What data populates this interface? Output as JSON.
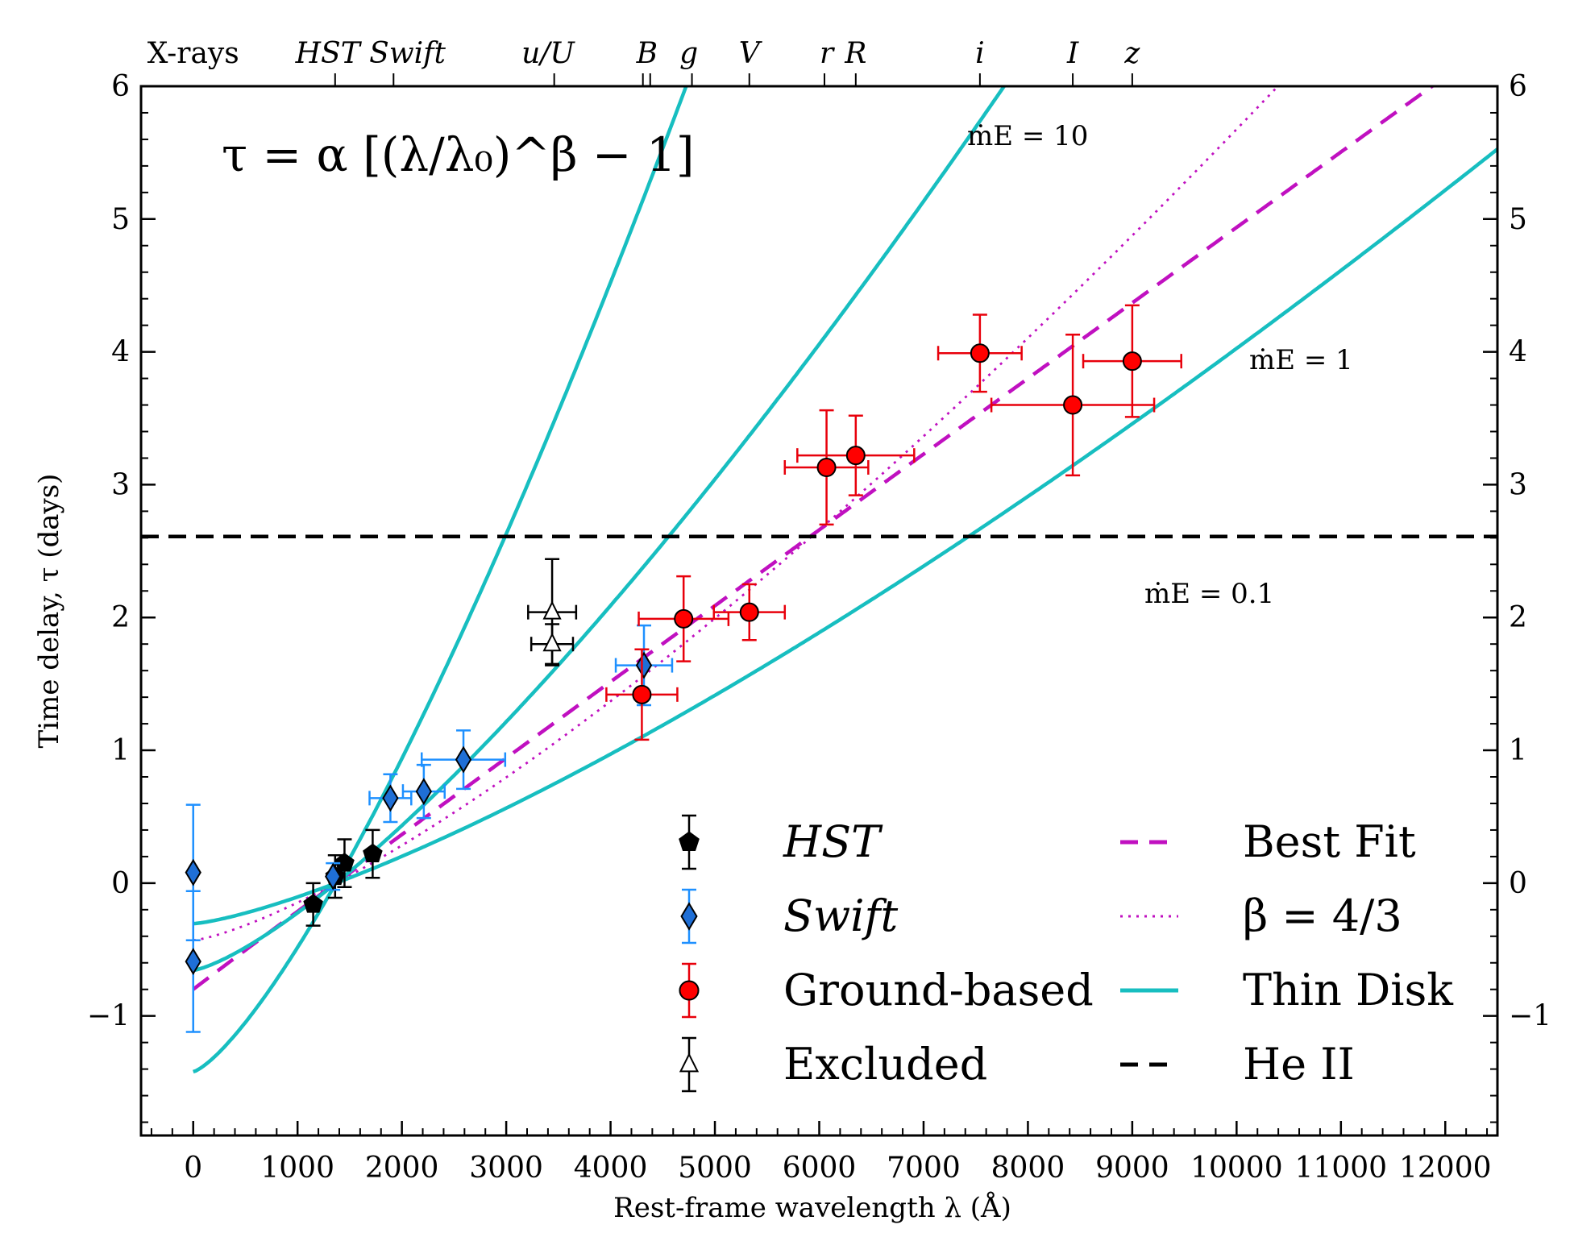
{
  "chart_data": {
    "type": "scatter",
    "formula": "τ = α [(λ/λ₀)^β − 1]",
    "xlabel": "Rest-frame wavelength λ (Å)",
    "ylabel": "Time delay, τ (days)",
    "xlim": [
      -500,
      12500
    ],
    "ylim": [
      -1.9,
      6
    ],
    "x_ticks": [
      0,
      1000,
      2000,
      3000,
      4000,
      5000,
      6000,
      7000,
      8000,
      9000,
      10000,
      11000,
      12000
    ],
    "y_ticks": [
      -1,
      0,
      1,
      2,
      3,
      4,
      5,
      6
    ],
    "y_tick_labels": [
      "−1",
      "0",
      "1",
      "2",
      "3",
      "4",
      "5",
      "6"
    ],
    "top_bands": [
      {
        "label": "X-rays",
        "x": 0,
        "italic": false
      },
      {
        "label": "HST Swift",
        "x": 1700,
        "italic": true
      },
      {
        "label": "u/U",
        "x": 3400,
        "italic": true
      },
      {
        "label": "B",
        "x": 4350,
        "italic": true
      },
      {
        "label": "g",
        "x": 4750,
        "italic": true
      },
      {
        "label": "V",
        "x": 5330,
        "italic": true
      },
      {
        "label": "r",
        "x": 6070,
        "italic": true
      },
      {
        "label": "R",
        "x": 6350,
        "italic": true
      },
      {
        "label": "i",
        "x": 7540,
        "italic": true
      },
      {
        "label": "I",
        "x": 8430,
        "italic": true
      },
      {
        "label": "z",
        "x": 9000,
        "italic": true
      }
    ],
    "top_ticks": [
      1360,
      1920,
      3460,
      4310,
      4380,
      4780,
      5330,
      6050,
      6350,
      7540,
      8430,
      9000
    ],
    "series": [
      {
        "name": "HST",
        "marker": "pentagon",
        "color": "#000000",
        "errcolor": "#000000",
        "points": [
          {
            "x": 1150,
            "y": -0.16,
            "yerr": 0.16
          },
          {
            "x": 1360,
            "y": 0.05,
            "yerr": 0.16,
            "xerr": 0.0
          },
          {
            "x": 1450,
            "y": 0.15,
            "yerr": 0.18
          },
          {
            "x": 1720,
            "y": 0.22,
            "yerr": 0.18
          }
        ]
      },
      {
        "name": "Swift",
        "marker": "diamond",
        "color": "#1f6fd6",
        "errcolor": "#1e90ff",
        "points": [
          {
            "x": 0,
            "y": 0.08,
            "yerr": 0.51
          },
          {
            "x": 0,
            "y": -0.59,
            "yerr": 0.53
          },
          {
            "x": 1340,
            "y": 0.05,
            "yerr": 0.1,
            "xerr": 0
          },
          {
            "x": 1890,
            "y": 0.64,
            "yerr": 0.18,
            "xerr": 200
          },
          {
            "x": 2210,
            "y": 0.69,
            "yerr": 0.2,
            "xerr": 200
          },
          {
            "x": 2590,
            "y": 0.93,
            "yerr": 0.22,
            "xerr": 400
          },
          {
            "x": 4320,
            "y": 1.64,
            "yerr": 0.3,
            "xerr": 270
          }
        ]
      },
      {
        "name": "Ground-based",
        "marker": "circle",
        "color": "#ff0000",
        "errcolor": "#e8000b",
        "points": [
          {
            "x": 4300,
            "y": 1.42,
            "yerr": 0.34,
            "xerr": 340
          },
          {
            "x": 4700,
            "y": 1.99,
            "yerr": 0.32,
            "xerr": 430
          },
          {
            "x": 5330,
            "y": 2.04,
            "yerr": 0.21,
            "xerr": 340
          },
          {
            "x": 6070,
            "y": 3.13,
            "yerr": 0.43,
            "xerr": 400
          },
          {
            "x": 6350,
            "y": 3.22,
            "yerr": 0.3,
            "xerr": 560
          },
          {
            "x": 7540,
            "y": 3.99,
            "yerr": 0.29,
            "xerr": 400
          },
          {
            "x": 8430,
            "y": 3.6,
            "yerr": 0.53,
            "xerr": 780
          },
          {
            "x": 9000,
            "y": 3.93,
            "yerr": 0.42,
            "xerr": 470
          }
        ]
      },
      {
        "name": "Excluded",
        "marker": "triangle",
        "color": "#ffffff",
        "errcolor": "#000000",
        "points": [
          {
            "x": 3440,
            "y": 2.04,
            "yerr": 0.4,
            "xerr": 230
          },
          {
            "x": 3440,
            "y": 1.8,
            "yerr": 0.15,
            "xerr": 200
          }
        ]
      }
    ],
    "models": [
      {
        "name": "Best Fit",
        "style": "dashed",
        "color": "#c010c0",
        "alpha": 0.8,
        "beta": 0.99,
        "lambda0": 1367
      },
      {
        "name": "β = 4/3",
        "style": "dotted",
        "color": "#c010c0",
        "alpha": 0.43,
        "beta": 1.3333,
        "lambda0": 1367
      },
      {
        "name": "Thin Disk",
        "style": "solid",
        "color": "#17bec0",
        "curves": [
          {
            "label": "ṁE = 10",
            "k": 1.42
          },
          {
            "label": "ṁE = 1",
            "k": 0.656
          },
          {
            "label": "ṁE = 0.1",
            "k": 0.305
          }
        ],
        "lambda0": 1367,
        "beta": 1.3333
      },
      {
        "name": "He II",
        "style": "dashed",
        "color": "#000000",
        "y": 2.61
      }
    ],
    "legend_left": [
      "HST",
      "Swift",
      "Ground-based",
      "Excluded"
    ],
    "legend_right": [
      "Best Fit",
      "β = 4/3",
      "Thin Disk",
      "He II"
    ],
    "legend_position": "bottom-right",
    "model_labels": [
      "ṁE = 10",
      "ṁE = 1",
      "ṁE = 0.1"
    ]
  }
}
